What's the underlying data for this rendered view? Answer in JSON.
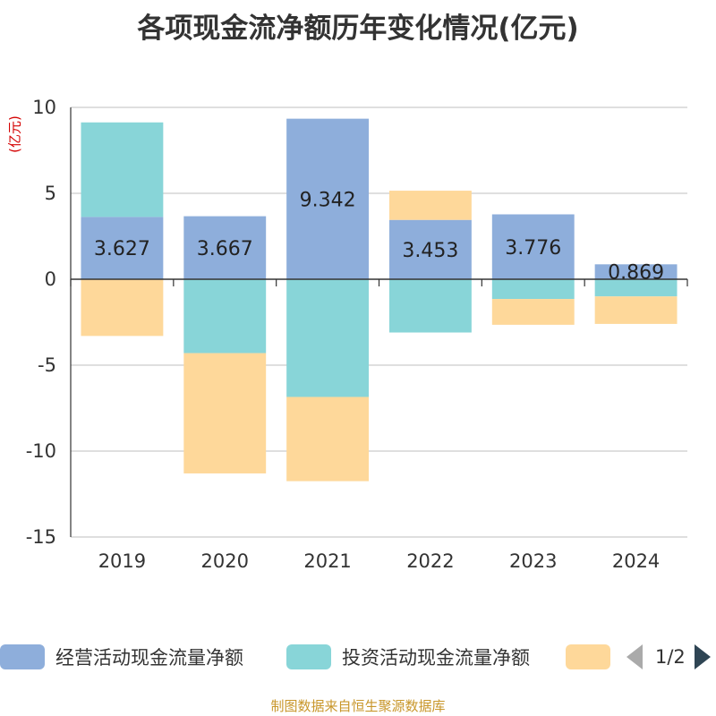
{
  "title": "各项现金流净额历年变化情况(亿元)",
  "unit_label": "(亿元)",
  "footer": "制图数据来自恒生聚源数据库",
  "chart_data": {
    "type": "bar",
    "stacked": true,
    "categories": [
      "2019",
      "2020",
      "2021",
      "2022",
      "2023",
      "2024"
    ],
    "ylim": [
      -15,
      10
    ],
    "yticks": [
      10,
      5,
      0,
      -5,
      -10,
      -15
    ],
    "grid": true,
    "legend_position": "bottom",
    "series": [
      {
        "name": "经营活动现金流量净额",
        "color": "#8eaedb",
        "values": [
          3.627,
          3.667,
          9.342,
          3.453,
          3.776,
          0.869
        ],
        "labels": [
          "3.627",
          "3.667",
          "9.342",
          "3.453",
          "3.776",
          "0.869"
        ]
      },
      {
        "name": "投资活动现金流量净额",
        "color": "#88d5d8",
        "values": [
          5.5,
          -4.3,
          -6.85,
          -3.1,
          -1.15,
          -1.0
        ]
      },
      {
        "name": "",
        "color": "#fed89a",
        "values": [
          -3.3,
          -7.0,
          -4.9,
          1.7,
          -1.5,
          -1.6
        ]
      }
    ]
  },
  "legend": {
    "items": [
      {
        "label": "经营活动现金流量净额",
        "color": "#8eaedb"
      },
      {
        "label": "投资活动现金流量净额",
        "color": "#88d5d8"
      },
      {
        "label": "",
        "color": "#fed89a"
      }
    ],
    "page": "1/2"
  }
}
